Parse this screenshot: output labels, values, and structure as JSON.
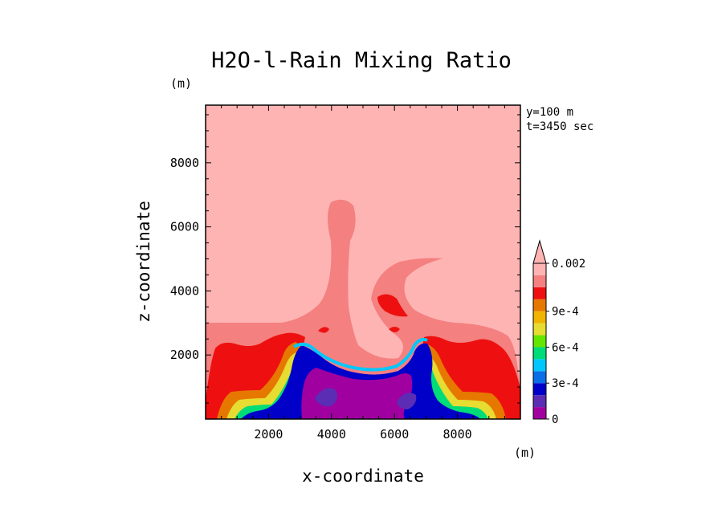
{
  "chart_data": {
    "type": "heatmap",
    "title": "H2O-l-Rain Mixing Ratio",
    "xlabel": "x-coordinate",
    "ylabel": "z-coordinate",
    "x_unit": "(m)",
    "y_unit": "(m)",
    "annotation_y": "y=100 m",
    "annotation_t": "t=3450 sec",
    "xlim": [
      0,
      10000
    ],
    "ylim": [
      0,
      9800
    ],
    "xticks": [
      2000,
      4000,
      6000,
      8000
    ],
    "yticks": [
      2000,
      4000,
      6000,
      8000
    ],
    "colorbar": {
      "levels": [
        0,
        0.0001,
        0.0002,
        0.0003,
        0.0004,
        0.0005,
        0.0006,
        0.0007,
        0.0008,
        0.0009,
        0.001,
        0.0015,
        0.002
      ],
      "tick_labels": [
        {
          "level": 0,
          "label": "0"
        },
        {
          "level": 0.0003,
          "label": "3e-4"
        },
        {
          "level": 0.0006,
          "label": "6e-4"
        },
        {
          "level": 0.0009,
          "label": "9e-4"
        },
        {
          "level": 0.002,
          "label": "0.002"
        }
      ],
      "colors": [
        "#a000a0",
        "#5a2db4",
        "#0000c8",
        "#0a6ee6",
        "#00c8ff",
        "#00dc78",
        "#64e600",
        "#e6dc32",
        "#f0b400",
        "#e67800",
        "#ee1010",
        "#f48080",
        "#ffb4b4"
      ],
      "extend": "max"
    }
  }
}
